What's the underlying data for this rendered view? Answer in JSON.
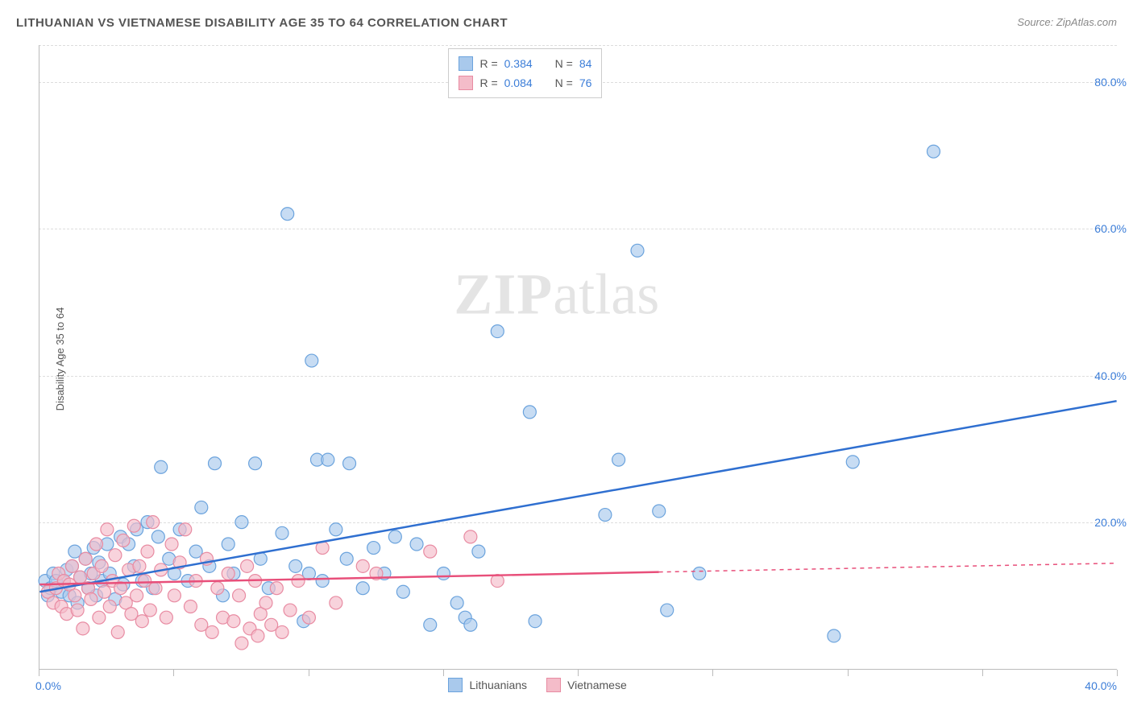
{
  "title": "LITHUANIAN VS VIETNAMESE DISABILITY AGE 35 TO 64 CORRELATION CHART",
  "source_label": "Source:",
  "source_value": "ZipAtlas.com",
  "y_axis_label": "Disability Age 35 to 64",
  "watermark": {
    "zip": "ZIP",
    "rest": "atlas"
  },
  "chart": {
    "type": "scatter",
    "xlim": [
      0,
      40
    ],
    "ylim": [
      0,
      85
    ],
    "y_ticks": [
      20,
      40,
      60,
      80
    ],
    "y_tick_labels": [
      "20.0%",
      "40.0%",
      "60.0%",
      "80.0%"
    ],
    "x_tick_positions": [
      0,
      5,
      10,
      15,
      20,
      25,
      30,
      35,
      40
    ],
    "x_tick_labels_shown": {
      "0": "0.0%",
      "40": "40.0%"
    },
    "background_color": "#ffffff",
    "grid_color": "#dddddd",
    "axis_color": "#bbbbbb",
    "marker_radius": 8,
    "marker_stroke_width": 1.2,
    "line_width": 2.5,
    "series": [
      {
        "name": "Lithuanians",
        "fill": "#a9c9ec",
        "stroke": "#6ba3dd",
        "line_color": "#2f6fd0",
        "regression": {
          "x1": 0,
          "y1": 10.5,
          "x2": 40,
          "y2": 36.5
        },
        "r": "0.384",
        "n": "84",
        "points": [
          [
            0.2,
            12
          ],
          [
            0.3,
            10
          ],
          [
            0.4,
            11
          ],
          [
            0.5,
            13
          ],
          [
            0.6,
            12
          ],
          [
            0.8,
            10.5
          ],
          [
            0.9,
            12
          ],
          [
            1.0,
            13.5
          ],
          [
            1.1,
            10
          ],
          [
            1.2,
            14
          ],
          [
            1.3,
            16
          ],
          [
            1.4,
            9
          ],
          [
            1.5,
            12.5
          ],
          [
            1.7,
            15
          ],
          [
            1.8,
            11
          ],
          [
            1.9,
            13
          ],
          [
            2.0,
            16.5
          ],
          [
            2.1,
            10
          ],
          [
            2.2,
            14.5
          ],
          [
            2.3,
            12
          ],
          [
            2.5,
            17
          ],
          [
            2.6,
            13
          ],
          [
            2.8,
            9.5
          ],
          [
            3.0,
            18
          ],
          [
            3.1,
            11.5
          ],
          [
            3.3,
            17
          ],
          [
            3.5,
            14
          ],
          [
            3.6,
            19
          ],
          [
            3.8,
            12
          ],
          [
            4.0,
            20
          ],
          [
            4.2,
            11
          ],
          [
            4.4,
            18
          ],
          [
            4.5,
            27.5
          ],
          [
            4.8,
            15
          ],
          [
            5.0,
            13
          ],
          [
            5.2,
            19
          ],
          [
            5.5,
            12
          ],
          [
            5.8,
            16
          ],
          [
            6.0,
            22
          ],
          [
            6.3,
            14
          ],
          [
            6.5,
            28
          ],
          [
            6.8,
            10
          ],
          [
            7.0,
            17
          ],
          [
            7.2,
            13
          ],
          [
            7.5,
            20
          ],
          [
            8.0,
            28
          ],
          [
            8.2,
            15
          ],
          [
            8.5,
            11
          ],
          [
            9.0,
            18.5
          ],
          [
            9.2,
            62
          ],
          [
            9.5,
            14
          ],
          [
            9.8,
            6.5
          ],
          [
            10.0,
            13
          ],
          [
            10.1,
            42
          ],
          [
            10.3,
            28.5
          ],
          [
            10.5,
            12
          ],
          [
            10.7,
            28.5
          ],
          [
            11.0,
            19
          ],
          [
            11.4,
            15
          ],
          [
            11.5,
            28
          ],
          [
            12.0,
            11
          ],
          [
            12.4,
            16.5
          ],
          [
            12.8,
            13
          ],
          [
            13.2,
            18
          ],
          [
            13.5,
            10.5
          ],
          [
            14.0,
            17
          ],
          [
            14.5,
            6
          ],
          [
            15.0,
            13
          ],
          [
            15.5,
            9
          ],
          [
            15.8,
            7
          ],
          [
            16.0,
            6
          ],
          [
            16.3,
            16
          ],
          [
            17.0,
            46
          ],
          [
            18.2,
            35
          ],
          [
            18.4,
            6.5
          ],
          [
            21.0,
            21
          ],
          [
            21.5,
            28.5
          ],
          [
            22.2,
            57
          ],
          [
            23.0,
            21.5
          ],
          [
            23.3,
            8
          ],
          [
            24.5,
            13
          ],
          [
            29.5,
            4.5
          ],
          [
            30.2,
            28.2
          ],
          [
            33.2,
            70.5
          ]
        ]
      },
      {
        "name": "Vietnamese",
        "fill": "#f4bcc9",
        "stroke": "#e88ba2",
        "line_color": "#e84f7a",
        "regression": {
          "x1": 0,
          "y1": 11.5,
          "x2": 23,
          "y2": 13.2
        },
        "regression_dashed_ext": {
          "x1": 23,
          "y1": 13.2,
          "x2": 40,
          "y2": 14.4
        },
        "r": "0.084",
        "n": "76",
        "points": [
          [
            0.3,
            10.5
          ],
          [
            0.5,
            9
          ],
          [
            0.6,
            11
          ],
          [
            0.7,
            13
          ],
          [
            0.8,
            8.5
          ],
          [
            0.9,
            12
          ],
          [
            1.0,
            7.5
          ],
          [
            1.1,
            11.5
          ],
          [
            1.2,
            14
          ],
          [
            1.3,
            10
          ],
          [
            1.4,
            8
          ],
          [
            1.5,
            12.5
          ],
          [
            1.6,
            5.5
          ],
          [
            1.7,
            15
          ],
          [
            1.8,
            11
          ],
          [
            1.9,
            9.5
          ],
          [
            2.0,
            13
          ],
          [
            2.1,
            17
          ],
          [
            2.2,
            7
          ],
          [
            2.3,
            14
          ],
          [
            2.4,
            10.5
          ],
          [
            2.5,
            19
          ],
          [
            2.6,
            8.5
          ],
          [
            2.7,
            12
          ],
          [
            2.8,
            15.5
          ],
          [
            2.9,
            5
          ],
          [
            3.0,
            11
          ],
          [
            3.1,
            17.5
          ],
          [
            3.2,
            9
          ],
          [
            3.3,
            13.5
          ],
          [
            3.4,
            7.5
          ],
          [
            3.5,
            19.5
          ],
          [
            3.6,
            10
          ],
          [
            3.7,
            14
          ],
          [
            3.8,
            6.5
          ],
          [
            3.9,
            12
          ],
          [
            4.0,
            16
          ],
          [
            4.1,
            8
          ],
          [
            4.2,
            20
          ],
          [
            4.3,
            11
          ],
          [
            4.5,
            13.5
          ],
          [
            4.7,
            7
          ],
          [
            4.9,
            17
          ],
          [
            5.0,
            10
          ],
          [
            5.2,
            14.5
          ],
          [
            5.4,
            19
          ],
          [
            5.6,
            8.5
          ],
          [
            5.8,
            12
          ],
          [
            6.0,
            6
          ],
          [
            6.2,
            15
          ],
          [
            6.4,
            5
          ],
          [
            6.6,
            11
          ],
          [
            6.8,
            7
          ],
          [
            7.0,
            13
          ],
          [
            7.2,
            6.5
          ],
          [
            7.4,
            10
          ],
          [
            7.5,
            3.5
          ],
          [
            7.7,
            14
          ],
          [
            7.8,
            5.5
          ],
          [
            8.0,
            12
          ],
          [
            8.1,
            4.5
          ],
          [
            8.2,
            7.5
          ],
          [
            8.4,
            9
          ],
          [
            8.6,
            6
          ],
          [
            8.8,
            11
          ],
          [
            9.0,
            5
          ],
          [
            9.3,
            8
          ],
          [
            9.6,
            12
          ],
          [
            10.0,
            7
          ],
          [
            10.5,
            16.5
          ],
          [
            11.0,
            9
          ],
          [
            12.0,
            14
          ],
          [
            12.5,
            13
          ],
          [
            14.5,
            16
          ],
          [
            16.0,
            18
          ],
          [
            17.0,
            12
          ]
        ]
      }
    ]
  },
  "legend_top": {
    "rows": [
      {
        "swatch_fill": "#a9c9ec",
        "swatch_stroke": "#6ba3dd",
        "r_label": "R =",
        "r_val": "0.384",
        "n_label": "N =",
        "n_val": "84"
      },
      {
        "swatch_fill": "#f4bcc9",
        "swatch_stroke": "#e88ba2",
        "r_label": "R =",
        "r_val": "0.084",
        "n_label": "N =",
        "n_val": "76"
      }
    ]
  },
  "legend_bottom": {
    "items": [
      {
        "swatch_fill": "#a9c9ec",
        "swatch_stroke": "#6ba3dd",
        "label": "Lithuanians"
      },
      {
        "swatch_fill": "#f4bcc9",
        "swatch_stroke": "#e88ba2",
        "label": "Vietnamese"
      }
    ]
  }
}
